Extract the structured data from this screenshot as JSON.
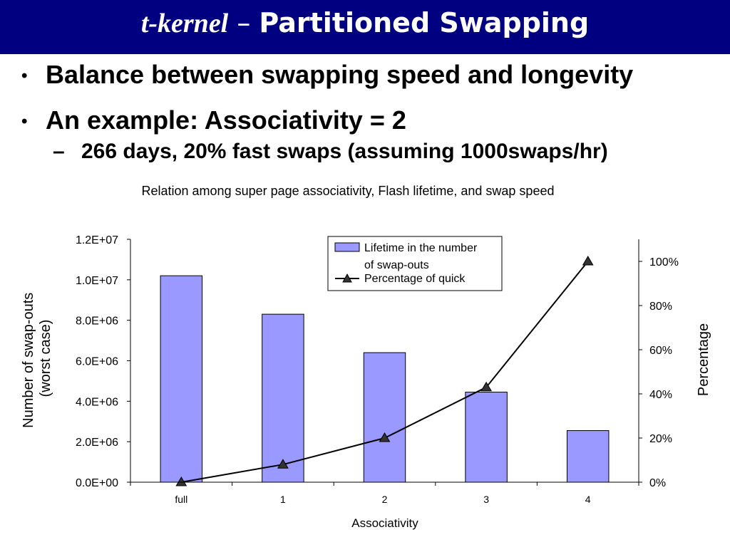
{
  "slide": {
    "title_italic": "t-kernel",
    "title_dash": " – ",
    "title_rest": "Partitioned Swapping",
    "bullets": [
      {
        "mark": "•",
        "text": "Balance between swapping speed and longevity"
      },
      {
        "mark": "•",
        "text": "An example: Associativity = 2"
      },
      {
        "mark": "–",
        "text": "266 days, 20% fast swaps (assuming 1000swaps/hr)"
      }
    ]
  },
  "colors": {
    "title_bar": "#000080",
    "bar_fill": "#9999ff",
    "line": "#000000"
  },
  "chart_data": {
    "type": "bar+line",
    "title": "Relation among super page associativity, Flash lifetime, and swap speed",
    "xlabel": "Associativity",
    "ylabel": [
      "Number of swap-outs",
      "(worst case)"
    ],
    "y2label": "Percentage",
    "categories": [
      "full",
      "1",
      "2",
      "3",
      "4"
    ],
    "ylim": [
      0,
      12000000
    ],
    "y_ticks": [
      "0.0E+00",
      "2.0E+06",
      "4.0E+06",
      "6.0E+06",
      "8.0E+06",
      "1.0E+07",
      "1.2E+07"
    ],
    "y2lim": [
      0,
      1.0
    ],
    "y2_ticks": [
      "0%",
      "20%",
      "40%",
      "60%",
      "80%",
      "100%"
    ],
    "legend_position": "top-center",
    "series": [
      {
        "name": "Lifetime in the number of swap-outs",
        "legend_lines": [
          "Lifetime in the number",
          "of swap-outs"
        ],
        "type": "bar",
        "axis": "left",
        "values": [
          10200000,
          8300000,
          6400000,
          4450000,
          2550000
        ]
      },
      {
        "name": "Percentage of quick",
        "legend_lines": [
          "Percentage of quick"
        ],
        "type": "line",
        "axis": "right",
        "values": [
          0.0,
          0.08,
          0.2,
          0.43,
          1.0
        ]
      }
    ]
  }
}
